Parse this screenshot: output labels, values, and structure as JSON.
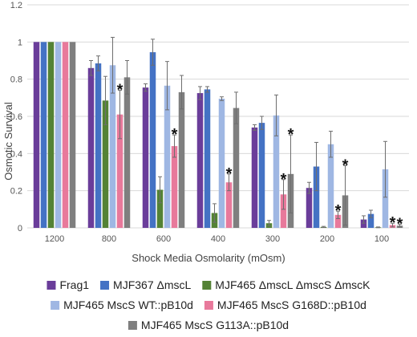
{
  "chart_data": {
    "type": "bar",
    "title": "",
    "xlabel": "Shock Media Osmolarity (mOsm)",
    "ylabel": "Osmotic Survival",
    "ylim": [
      0,
      1.2
    ],
    "yticks": [
      "0",
      "0.2",
      "0.4",
      "0.6",
      "0.8",
      "1",
      "1.2"
    ],
    "categories": [
      "1200",
      "800",
      "600",
      "400",
      "300",
      "200",
      "100"
    ],
    "grid": true,
    "legend_position": "bottom",
    "series": [
      {
        "name": "Frag1",
        "color": "#6a3d9a",
        "values": [
          1.0,
          0.86,
          0.755,
          0.725,
          0.54,
          0.215,
          0.045
        ],
        "errors": [
          0.0,
          0.04,
          0.02,
          0.035,
          0.015,
          0.03,
          0.02
        ]
      },
      {
        "name": "MJF367 ΔmscL",
        "color": "#4472c4",
        "values": [
          1.0,
          0.885,
          0.945,
          0.745,
          0.565,
          0.33,
          0.075
        ],
        "errors": [
          0.0,
          0.04,
          0.07,
          0.015,
          0.035,
          0.13,
          0.02
        ]
      },
      {
        "name": "MJF465 ΔmscL ΔmscS ΔmscK",
        "color": "#548235",
        "values": [
          1.0,
          0.685,
          0.205,
          0.08,
          0.025,
          0.005,
          0.003
        ],
        "errors": [
          0.0,
          0.13,
          0.07,
          0.05,
          0.015,
          0.003,
          0.002
        ]
      },
      {
        "name": "MJF465 MscS WT::pB10d",
        "color": "#9fb7e3",
        "values": [
          1.0,
          0.875,
          0.765,
          0.695,
          0.605,
          0.45,
          0.315
        ],
        "errors": [
          0.0,
          0.15,
          0.13,
          0.01,
          0.11,
          0.07,
          0.15
        ]
      },
      {
        "name": "MJF465 MscS G168D::pB10d",
        "color": "#e8799b",
        "values": [
          1.0,
          0.61,
          0.44,
          0.245,
          0.18,
          0.07,
          0.015
        ],
        "errors": [
          0.0,
          0.13,
          0.06,
          0.045,
          0.08,
          0.02,
          0.01
        ]
      },
      {
        "name": "MJF465 MscS G113A::pB10d",
        "color": "#7f7f7f",
        "values": [
          1.0,
          0.81,
          0.73,
          0.645,
          0.29,
          0.175,
          0.012
        ],
        "errors": [
          0.0,
          0.09,
          0.09,
          0.085,
          0.21,
          0.16,
          0.008
        ]
      }
    ],
    "annotations": [
      {
        "text": "*",
        "category": "800",
        "series": "MJF465 MscS G168D::pB10d"
      },
      {
        "text": "*",
        "category": "600",
        "series": "MJF465 MscS G168D::pB10d"
      },
      {
        "text": "*",
        "category": "400",
        "series": "MJF465 MscS G168D::pB10d"
      },
      {
        "text": "*",
        "category": "300",
        "series": "MJF465 MscS G168D::pB10d"
      },
      {
        "text": "*",
        "category": "300",
        "series": "MJF465 MscS G113A::pB10d"
      },
      {
        "text": "*",
        "category": "200",
        "series": "MJF465 MscS G168D::pB10d"
      },
      {
        "text": "*",
        "category": "200",
        "series": "MJF465 MscS G113A::pB10d"
      },
      {
        "text": "*",
        "category": "100",
        "series": "MJF465 MscS G168D::pB10d"
      },
      {
        "text": "*",
        "category": "100",
        "series": "MJF465 MscS G113A::pB10d"
      }
    ]
  }
}
